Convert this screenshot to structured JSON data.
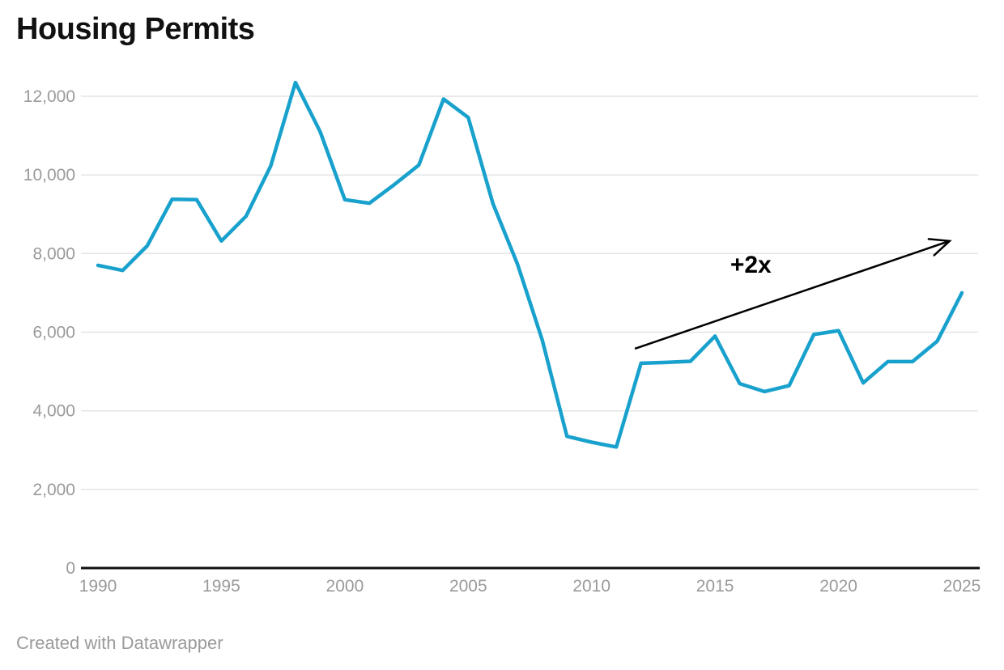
{
  "header": {
    "title": "Housing Permits"
  },
  "footer": {
    "credit": "Created with Datawrapper"
  },
  "colors": {
    "line": "#18a1cd",
    "grid": "#e4e4e4",
    "baseline": "#0f0f0f",
    "tick_label": "#9a9a9a",
    "title_text": "#111111",
    "footer_text": "#9a9a9a",
    "annotation": "#000000",
    "background": "#ffffff"
  },
  "chart_data": {
    "type": "line",
    "title": "Housing Permits",
    "x": [
      1990,
      1991,
      1992,
      1993,
      1994,
      1995,
      1996,
      1997,
      1998,
      1999,
      2000,
      2001,
      2002,
      2003,
      2004,
      2005,
      2006,
      2007,
      2008,
      2009,
      2010,
      2011,
      2012,
      2013,
      2014,
      2015,
      2016,
      2017,
      2018,
      2019,
      2020,
      2021,
      2022,
      2023,
      2024,
      2025
    ],
    "values": [
      7700,
      7570,
      8200,
      9380,
      9370,
      8320,
      8950,
      10230,
      12350,
      11100,
      9370,
      9280,
      9750,
      10250,
      11930,
      11460,
      9270,
      7720,
      5800,
      3350,
      3200,
      3080,
      5210,
      5230,
      5260,
      5900,
      4690,
      4490,
      4640,
      5940,
      6040,
      4710,
      5250,
      5250,
      5770,
      7000
    ],
    "xlabel": "",
    "ylabel": "",
    "xlim": [
      1990,
      2025
    ],
    "ylim": [
      0,
      12000
    ],
    "x_ticks": [
      1990,
      1995,
      2000,
      2005,
      2010,
      2015,
      2020,
      2025
    ],
    "y_ticks": [
      0,
      2000,
      4000,
      6000,
      8000,
      10000,
      12000
    ],
    "y_tick_labels": [
      "0",
      "2,000",
      "4,000",
      "6,000",
      "8,000",
      "10,000",
      "12,000"
    ],
    "grid": "horizontal",
    "legend": "none",
    "annotations": [
      {
        "type": "arrow",
        "label": "+2x",
        "label_at": {
          "x": 2016.45,
          "y": 7740
        },
        "from": {
          "x": 2011.75,
          "y": 5580
        },
        "to": {
          "x": 2024.5,
          "y": 8320
        }
      }
    ]
  }
}
